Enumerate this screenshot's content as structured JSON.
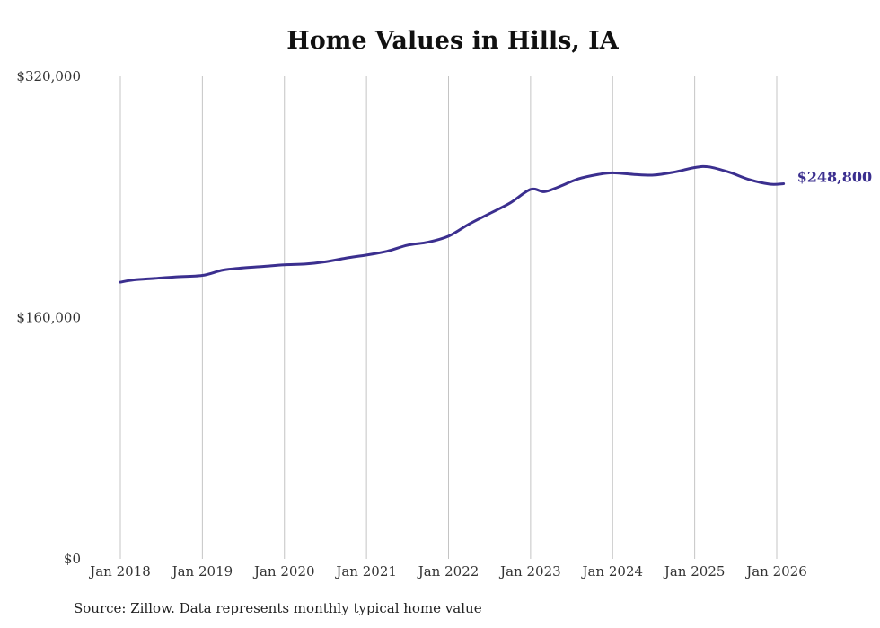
{
  "chart_data": {
    "type": "line",
    "title": "Home Values in Hills, IA",
    "source": "Source: Zillow. Data represents monthly typical home value",
    "xlabel": "",
    "ylabel": "",
    "x_ticks": [
      "Jan 2018",
      "Jan 2019",
      "Jan 2020",
      "Jan 2021",
      "Jan 2022",
      "Jan 2023",
      "Jan 2024",
      "Jan 2025",
      "Jan 2026"
    ],
    "y_ticks": [
      "$0",
      "$160,000",
      "$320,000"
    ],
    "ylim": [
      0,
      320000
    ],
    "xlim": [
      "2018-01",
      "2026-02"
    ],
    "grid": "vertical",
    "series_color": "#3b2f8f",
    "end_label": "$248,800",
    "series": [
      {
        "x": [
          "2018-01",
          "2018-03",
          "2018-06",
          "2018-09",
          "2019-01",
          "2019-04",
          "2019-07",
          "2019-10",
          "2020-01",
          "2020-04",
          "2020-07",
          "2020-10",
          "2021-01",
          "2021-04",
          "2021-07",
          "2021-10",
          "2022-01",
          "2022-04",
          "2022-07",
          "2022-10",
          "2023-01",
          "2023-03",
          "2023-05",
          "2023-08",
          "2023-11",
          "2024-01",
          "2024-04",
          "2024-07",
          "2024-10",
          "2025-01",
          "2025-03",
          "2025-06",
          "2025-09",
          "2025-12",
          "2026-02"
        ],
        "values": [
          183500,
          185000,
          186000,
          187000,
          188000,
          191500,
          193000,
          194000,
          195000,
          195500,
          197000,
          199500,
          201500,
          204000,
          208000,
          210000,
          214000,
          222000,
          229000,
          236000,
          245000,
          243500,
          246500,
          252000,
          255000,
          256000,
          255000,
          254500,
          256500,
          259500,
          260000,
          256500,
          251500,
          248500,
          248800
        ]
      }
    ]
  }
}
